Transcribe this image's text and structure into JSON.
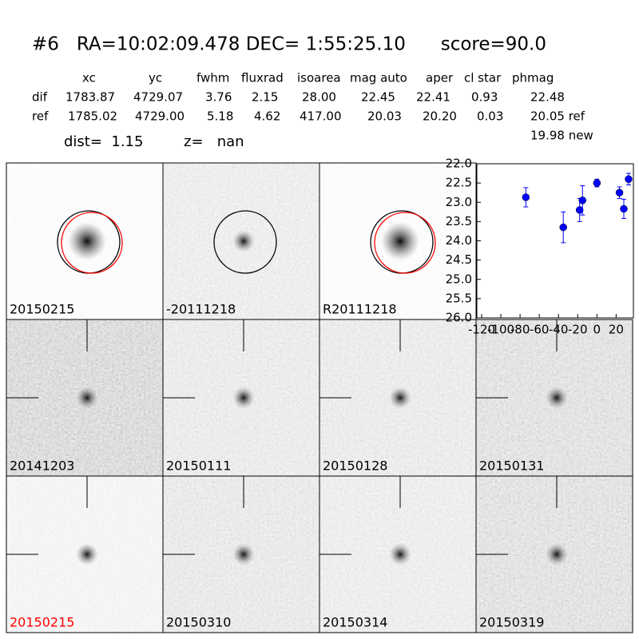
{
  "header": {
    "title": "#6   RA=10:02:09.478 DEC= 1:55:25.10      score=90.0",
    "dist": "dist=  1.15",
    "z": "z=   nan"
  },
  "table": {
    "columns": [
      "xc",
      "yc",
      "fwhm",
      "fluxrad",
      "isoarea",
      "mag auto",
      "aper",
      "cl star",
      "phmag"
    ],
    "rows": [
      [
        "dif",
        "1783.87",
        "4729.07",
        "3.76",
        "2.15",
        "28.00",
        "22.45",
        "22.41",
        "0.93",
        "22.48"
      ],
      [
        "ref",
        "1785.02",
        "4729.00",
        "5.18",
        "4.62",
        "417.00",
        "20.03",
        "20.20",
        "0.03",
        "20.05 ref"
      ]
    ],
    "extra": "19.98 new"
  },
  "panels": [
    {
      "label": "20150215"
    },
    {
      "label": "-20111218"
    },
    {
      "label": "R20111218"
    },
    {
      "label": "20141203"
    },
    {
      "label": "20150111"
    },
    {
      "label": "20150128"
    },
    {
      "label": "20150131"
    },
    {
      "label": "20150215",
      "label_color": "red"
    },
    {
      "label": "20150310"
    },
    {
      "label": "20150314"
    },
    {
      "label": "20150319"
    }
  ],
  "chart_data": {
    "type": "scatter",
    "color": "#0000ff",
    "x": [
      -74,
      -35,
      -18,
      -15,
      0,
      23.5,
      28,
      33
    ],
    "values": [
      22.87,
      23.65,
      23.2,
      22.95,
      22.5,
      22.75,
      23.17,
      22.4
    ],
    "errors": [
      0.25,
      0.4,
      0.3,
      0.38,
      0.1,
      0.15,
      0.25,
      0.15
    ],
    "xlim": [
      -125,
      38
    ],
    "ylim": [
      26,
      22
    ],
    "xticks": [
      -120,
      -100,
      -80,
      -60,
      -40,
      -20,
      0,
      20
    ],
    "yticks": [
      {
        "value": 22,
        "label": "22.0"
      },
      {
        "value": 22.5,
        "label": "22.5"
      },
      {
        "value": 23,
        "label": "23.0"
      },
      {
        "value": 23.5,
        "label": "23.5"
      },
      {
        "value": 24,
        "label": "24.0"
      },
      {
        "value": 24.5,
        "label": "24.5"
      },
      {
        "value": 25,
        "label": "25.0"
      },
      {
        "value": 25.5,
        "label": "25.5"
      },
      {
        "value": 26,
        "label": "26.0"
      }
    ]
  }
}
